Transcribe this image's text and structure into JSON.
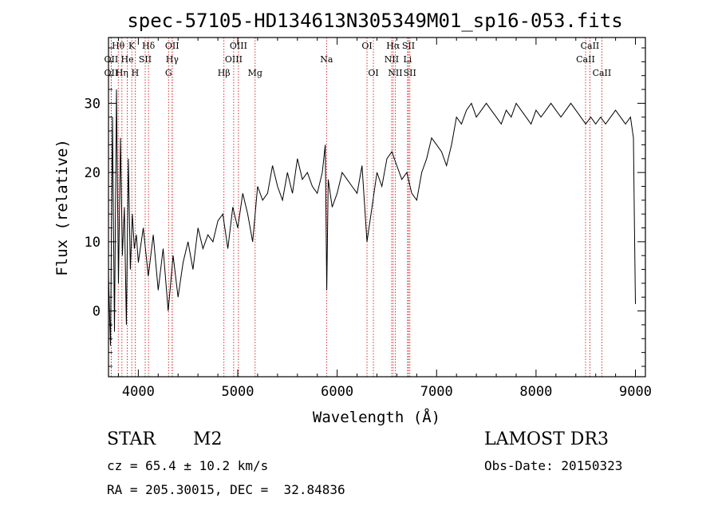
{
  "chart_data": {
    "type": "line",
    "title": "spec-57105-HD134613N305349M01_sp16-053.fits",
    "xlabel": "Wavelength (Å)",
    "ylabel": "Flux (relative)",
    "xlim": [
      3700,
      9100
    ],
    "ylim": [
      -9.5,
      39.5
    ],
    "x_ticks": [
      4000,
      5000,
      6000,
      7000,
      8000,
      9000
    ],
    "y_ticks": [
      0,
      10,
      20,
      30
    ],
    "grid": false,
    "legend": "none",
    "line_color": "#000000",
    "marker_color": "#cc0000",
    "series": [
      {
        "x": [
          3700,
          3720,
          3740,
          3760,
          3780,
          3800,
          3820,
          3840,
          3860,
          3880,
          3900,
          3920,
          3940,
          3960,
          3980,
          4000,
          4050,
          4100,
          4150,
          4200,
          4250,
          4300,
          4350,
          4400,
          4450,
          4500,
          4550,
          4600,
          4650,
          4700,
          4750,
          4800,
          4850,
          4900,
          4950,
          5000,
          5050,
          5100,
          5150,
          5200,
          5250,
          5300,
          5350,
          5400,
          5450,
          5500,
          5550,
          5600,
          5650,
          5700,
          5750,
          5800,
          5850,
          5880,
          5895,
          5910,
          5950,
          6000,
          6050,
          6100,
          6150,
          6200,
          6250,
          6300,
          6350,
          6400,
          6450,
          6500,
          6550,
          6600,
          6650,
          6700,
          6750,
          6800,
          6850,
          6900,
          6950,
          7000,
          7050,
          7100,
          7150,
          7200,
          7250,
          7300,
          7350,
          7400,
          7450,
          7500,
          7550,
          7600,
          7650,
          7700,
          7750,
          7800,
          7850,
          7900,
          7950,
          8000,
          8050,
          8100,
          8150,
          8200,
          8250,
          8300,
          8350,
          8400,
          8450,
          8500,
          8550,
          8600,
          8650,
          8700,
          8750,
          8800,
          8850,
          8900,
          8950,
          8980,
          8990,
          9000
        ],
        "y": [
          5,
          -5,
          28,
          -3,
          32,
          4,
          25,
          8,
          15,
          -2,
          22,
          6,
          14,
          9,
          11,
          7,
          12,
          5,
          11,
          3,
          9,
          0,
          8,
          2,
          7,
          10,
          6,
          12,
          9,
          11,
          10,
          13,
          14,
          9,
          15,
          12,
          17,
          14,
          10,
          18,
          16,
          17,
          21,
          18,
          16,
          20,
          17,
          22,
          19,
          20,
          18,
          17,
          20,
          24,
          3,
          19,
          15,
          17,
          20,
          19,
          18,
          17,
          21,
          10,
          15,
          20,
          18,
          22,
          23,
          21,
          19,
          20,
          17,
          16,
          20,
          22,
          25,
          24,
          23,
          21,
          24,
          28,
          27,
          29,
          30,
          28,
          29,
          30,
          29,
          28,
          27,
          29,
          28,
          30,
          29,
          28,
          27,
          29,
          28,
          29,
          30,
          29,
          28,
          29,
          30,
          29,
          28,
          27,
          28,
          27,
          28,
          27,
          28,
          29,
          28,
          27,
          28,
          25,
          12,
          1
        ]
      }
    ],
    "line_markers": [
      {
        "label": "Hθ",
        "x": 3798,
        "row": 1
      },
      {
        "label": "K",
        "x": 3934,
        "row": 1
      },
      {
        "label": "Hδ",
        "x": 4102,
        "row": 1
      },
      {
        "label": "OII",
        "x": 4340,
        "row": 1
      },
      {
        "label": "OIII",
        "x": 5007,
        "row": 1
      },
      {
        "label": "OI",
        "x": 6300,
        "row": 1
      },
      {
        "label": "Hα",
        "x": 6563,
        "row": 1
      },
      {
        "label": "SII",
        "x": 6717,
        "row": 1
      },
      {
        "label": "CaII",
        "x": 8542,
        "row": 1
      },
      {
        "label": "OII",
        "x": 3727,
        "row": 2
      },
      {
        "label": "He",
        "x": 3889,
        "row": 2
      },
      {
        "label": "SII",
        "x": 4069,
        "row": 2
      },
      {
        "label": "Hγ",
        "x": 4341,
        "row": 2
      },
      {
        "label": "OIII",
        "x": 4959,
        "row": 2
      },
      {
        "label": "Na",
        "x": 5893,
        "row": 2
      },
      {
        "label": "NII",
        "x": 6548,
        "row": 2
      },
      {
        "label": "Li",
        "x": 6708,
        "row": 2
      },
      {
        "label": "CaII",
        "x": 8498,
        "row": 2
      },
      {
        "label": "OII",
        "x": 3727,
        "row": 3
      },
      {
        "label": "Hη",
        "x": 3835,
        "row": 3
      },
      {
        "label": "H",
        "x": 3968,
        "row": 3
      },
      {
        "label": "G",
        "x": 4304,
        "row": 3
      },
      {
        "label": "Hβ",
        "x": 4861,
        "row": 3
      },
      {
        "label": "Mg",
        "x": 5175,
        "row": 3
      },
      {
        "label": "OI",
        "x": 6364,
        "row": 3
      },
      {
        "label": "NII",
        "x": 6584,
        "row": 3
      },
      {
        "label": "SII",
        "x": 6731,
        "row": 3
      },
      {
        "label": "CaII",
        "x": 8662,
        "row": 3
      }
    ]
  },
  "info": {
    "class": "STAR",
    "subclass": "M2",
    "survey": "LAMOST DR3",
    "velocity": "cz = 65.4 ± 10.2 km/s",
    "obs_date": "Obs-Date: 20150323",
    "coords": "RA = 205.30015, DEC =  32.84836"
  }
}
